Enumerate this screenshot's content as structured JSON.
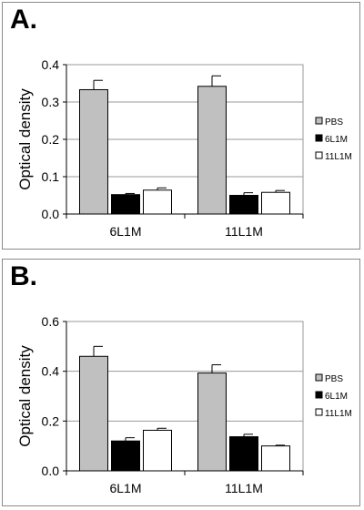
{
  "chart_data": [
    {
      "panel_label": "A.",
      "type": "bar",
      "categories": [
        "6L1M",
        "11L1M"
      ],
      "series": [
        {
          "name": "PBS",
          "values": [
            0.333,
            0.342
          ],
          "errors": [
            0.025,
            0.028
          ],
          "color": "#c0c0c0"
        },
        {
          "name": "6L1M",
          "values": [
            0.052,
            0.05
          ],
          "errors": [
            0.003,
            0.007
          ],
          "color": "#000000"
        },
        {
          "name": "11L1M",
          "values": [
            0.064,
            0.058
          ],
          "errors": [
            0.006,
            0.005
          ],
          "color": "#ffffff"
        }
      ],
      "ylabel": "Optical density",
      "ylim": [
        0,
        0.4
      ],
      "yticks": [
        0,
        0.1,
        0.2,
        0.3,
        0.4
      ],
      "ytick_labels": [
        "0.0",
        "0.1",
        "0.2",
        "0.3",
        "0.4"
      ],
      "grid": true,
      "legend_position": "right"
    },
    {
      "panel_label": "B.",
      "type": "bar",
      "categories": [
        "6L1M",
        "11L1M"
      ],
      "series": [
        {
          "name": "PBS",
          "values": [
            0.46,
            0.393
          ],
          "errors": [
            0.04,
            0.033
          ],
          "color": "#c0c0c0"
        },
        {
          "name": "6L1M",
          "values": [
            0.12,
            0.137
          ],
          "errors": [
            0.013,
            0.01
          ],
          "color": "#000000"
        },
        {
          "name": "11L1M",
          "values": [
            0.163,
            0.1
          ],
          "errors": [
            0.008,
            0.003
          ],
          "color": "#ffffff"
        }
      ],
      "ylabel": "Optical density",
      "ylim": [
        0,
        0.6
      ],
      "yticks": [
        0,
        0.2,
        0.4,
        0.6
      ],
      "ytick_labels": [
        "0.0",
        "0.2",
        "0.4",
        "0.6"
      ],
      "grid": true,
      "legend_position": "right"
    }
  ]
}
